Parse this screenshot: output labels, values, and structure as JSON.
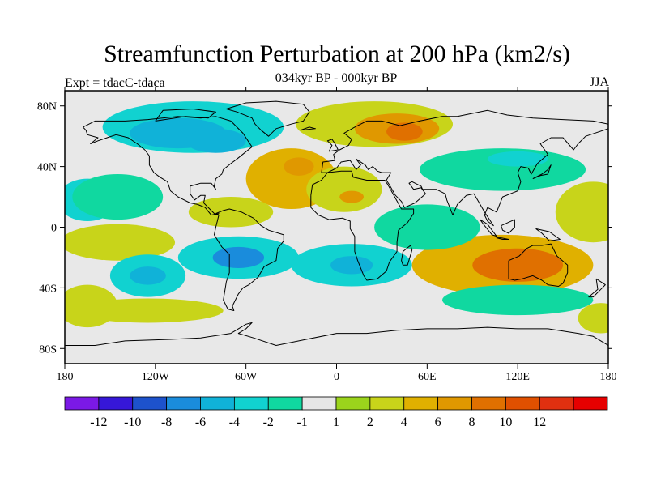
{
  "figure": {
    "title": "Streamfunction Perturbation at 200 hPa (km2/s)",
    "subtitle": "034kyr BP - 000kyr BP",
    "left_label": "Expt = tdacC-tdaca",
    "right_label": "JJA"
  },
  "map": {
    "projection": "cylindrical equidistant",
    "lon_range": [
      -180,
      180
    ],
    "lat_range": [
      -90,
      90
    ],
    "lon_ticks": [
      {
        "value": -180,
        "label": "180"
      },
      {
        "value": -120,
        "label": "120W"
      },
      {
        "value": -60,
        "label": "60W"
      },
      {
        "value": 0,
        "label": "0"
      },
      {
        "value": 60,
        "label": "60E"
      },
      {
        "value": 120,
        "label": "120E"
      },
      {
        "value": 180,
        "label": "180"
      }
    ],
    "lat_ticks": [
      {
        "value": 80,
        "label": "80N"
      },
      {
        "value": 40,
        "label": "40N"
      },
      {
        "value": 0,
        "label": "0"
      },
      {
        "value": -40,
        "label": "40S"
      },
      {
        "value": -80,
        "label": "80S"
      }
    ],
    "background_color": "#e8e8e8"
  },
  "colorbar": {
    "colors": [
      "#7b19e6",
      "#3617d8",
      "#1d52cc",
      "#1a8cdc",
      "#10b2d8",
      "#11d2d0",
      "#10d8a0",
      "#e6e6e6",
      "#9bd41c",
      "#c8d41a",
      "#e0b000",
      "#e09800",
      "#e07000",
      "#e05000",
      "#e03010",
      "#e60000"
    ],
    "labels": [
      "-12",
      "-10",
      "-8",
      "-6",
      "-4",
      "-2",
      "-1",
      "1",
      "2",
      "4",
      "6",
      "8",
      "10",
      "12"
    ]
  },
  "chart_data": {
    "type": "heatmap",
    "variable": "Streamfunction perturbation at 200 hPa",
    "units": "km2/s",
    "season": "JJA",
    "levels": [
      -12,
      -10,
      -8,
      -6,
      -4,
      -2,
      -1,
      1,
      2,
      4,
      6,
      8,
      10,
      12
    ],
    "features": [
      {
        "lon": 25,
        "lat": 68,
        "rx": 52,
        "ry": 15,
        "value": 3
      },
      {
        "lon": 40,
        "lat": 65,
        "rx": 28,
        "ry": 10,
        "value": 6
      },
      {
        "lon": 45,
        "lat": 63,
        "rx": 12,
        "ry": 6,
        "value": 8
      },
      {
        "lon": -95,
        "lat": 66,
        "rx": 60,
        "ry": 17,
        "value": -3
      },
      {
        "lon": -105,
        "lat": 62,
        "rx": 32,
        "ry": 10,
        "value": -5
      },
      {
        "lon": -80,
        "lat": 57,
        "rx": 20,
        "ry": 8,
        "value": -5
      },
      {
        "lon": -30,
        "lat": 32,
        "rx": 30,
        "ry": 20,
        "value": 4
      },
      {
        "lon": -25,
        "lat": 40,
        "rx": 10,
        "ry": 6,
        "value": 7
      },
      {
        "lon": 5,
        "lat": 25,
        "rx": 25,
        "ry": 15,
        "value": 3
      },
      {
        "lon": 10,
        "lat": 20,
        "rx": 8,
        "ry": 4,
        "value": 6
      },
      {
        "lon": -165,
        "lat": 18,
        "rx": 20,
        "ry": 14,
        "value": -3
      },
      {
        "lon": -145,
        "lat": 20,
        "rx": 30,
        "ry": 15,
        "value": -2
      },
      {
        "lon": -145,
        "lat": -10,
        "rx": 38,
        "ry": 12,
        "value": 2
      },
      {
        "lon": -70,
        "lat": 10,
        "rx": 28,
        "ry": 10,
        "value": 3
      },
      {
        "lon": -65,
        "lat": -20,
        "rx": 40,
        "ry": 14,
        "value": -4
      },
      {
        "lon": -65,
        "lat": -20,
        "rx": 17,
        "ry": 7,
        "value": -7
      },
      {
        "lon": -125,
        "lat": -32,
        "rx": 25,
        "ry": 14,
        "value": -3
      },
      {
        "lon": -125,
        "lat": -32,
        "rx": 12,
        "ry": 6,
        "value": -5
      },
      {
        "lon": -165,
        "lat": -52,
        "rx": 20,
        "ry": 14,
        "value": 3
      },
      {
        "lon": -125,
        "lat": -55,
        "rx": 50,
        "ry": 8,
        "value": 2
      },
      {
        "lon": 10,
        "lat": -25,
        "rx": 40,
        "ry": 14,
        "value": -4
      },
      {
        "lon": 10,
        "lat": -25,
        "rx": 14,
        "ry": 6,
        "value": -6
      },
      {
        "lon": 110,
        "lat": -25,
        "rx": 60,
        "ry": 20,
        "value": 4
      },
      {
        "lon": 120,
        "lat": -25,
        "rx": 30,
        "ry": 11,
        "value": 8
      },
      {
        "lon": 120,
        "lat": -48,
        "rx": 50,
        "ry": 10,
        "value": -2
      },
      {
        "lon": 110,
        "lat": 38,
        "rx": 55,
        "ry": 14,
        "value": -2
      },
      {
        "lon": 120,
        "lat": 45,
        "rx": 20,
        "ry": 5,
        "value": -4
      },
      {
        "lon": 60,
        "lat": 0,
        "rx": 35,
        "ry": 15,
        "value": -2
      },
      {
        "lon": 170,
        "lat": 10,
        "rx": 25,
        "ry": 20,
        "value": 2
      },
      {
        "lon": 175,
        "lat": -60,
        "rx": 15,
        "ry": 10,
        "value": 3
      }
    ]
  }
}
